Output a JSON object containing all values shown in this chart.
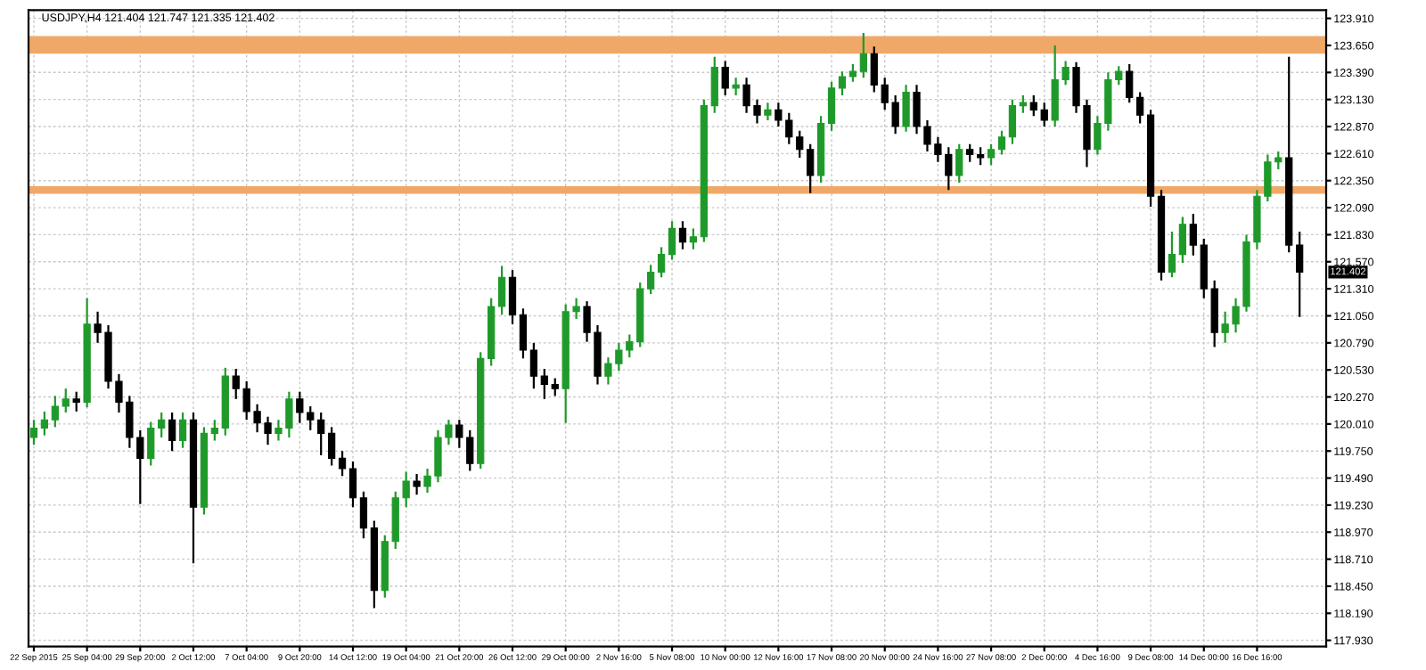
{
  "chart_data": {
    "type": "candlestick",
    "title": "USDJPY,H4 121.404 121.747 121.335 121.402",
    "categories": [
      "22 Sep 2015",
      null,
      null,
      null,
      null,
      "25 Sep 04:00",
      null,
      null,
      null,
      null,
      "29 Sep 20:00",
      null,
      null,
      null,
      null,
      "2 Oct 12:00",
      null,
      null,
      null,
      null,
      "7 Oct 04:00",
      null,
      null,
      null,
      null,
      "9 Oct 20:00",
      null,
      null,
      null,
      null,
      "14 Oct 12:00",
      null,
      null,
      null,
      null,
      "19 Oct 04:00",
      null,
      null,
      null,
      null,
      "21 Oct 20:00",
      null,
      null,
      null,
      null,
      "26 Oct 12:00",
      null,
      null,
      null,
      null,
      "29 Oct 00:00",
      null,
      null,
      null,
      null,
      "2 Nov 16:00",
      null,
      null,
      null,
      null,
      "5 Nov 08:00",
      null,
      null,
      null,
      null,
      "10 Nov 00:00",
      null,
      null,
      null,
      null,
      "12 Nov 16:00",
      null,
      null,
      null,
      null,
      "17 Nov 08:00",
      null,
      null,
      null,
      null,
      "20 Nov 00:00",
      null,
      null,
      null,
      null,
      "24 Nov 16:00",
      null,
      null,
      null,
      null,
      "27 Nov 08:00",
      null,
      null,
      null,
      null,
      "2 Dec 00:00",
      null,
      null,
      null,
      null,
      "4 Dec 16:00",
      null,
      null,
      null,
      null,
      "9 Dec 08:00",
      null,
      null,
      null,
      null,
      "14 Dec 00:00",
      null,
      null,
      null,
      null,
      "16 Dec 16:00",
      null,
      null,
      null,
      null
    ],
    "ohlc": [
      [
        119.88,
        120.05,
        119.81,
        119.97
      ],
      [
        119.97,
        120.13,
        119.9,
        120.05
      ],
      [
        120.05,
        120.28,
        119.98,
        120.18
      ],
      [
        120.18,
        120.35,
        120.12,
        120.25
      ],
      [
        120.25,
        120.32,
        120.13,
        120.22
      ],
      [
        120.22,
        121.22,
        120.17,
        120.97
      ],
      [
        120.97,
        121.09,
        120.79,
        120.89
      ],
      [
        120.89,
        120.96,
        120.35,
        120.42
      ],
      [
        120.42,
        120.49,
        120.12,
        120.22
      ],
      [
        120.22,
        120.28,
        119.78,
        119.88
      ],
      [
        119.88,
        119.95,
        119.24,
        119.68
      ],
      [
        119.68,
        120.03,
        119.61,
        119.97
      ],
      [
        119.97,
        120.12,
        119.88,
        120.05
      ],
      [
        120.05,
        120.12,
        119.75,
        119.85
      ],
      [
        119.85,
        120.12,
        119.78,
        120.05
      ],
      [
        120.05,
        120.12,
        118.67,
        119.21
      ],
      [
        119.21,
        119.98,
        119.14,
        119.92
      ],
      [
        119.92,
        120.05,
        119.85,
        119.97
      ],
      [
        119.97,
        120.55,
        119.9,
        120.47
      ],
      [
        120.47,
        120.54,
        120.25,
        120.35
      ],
      [
        120.35,
        120.42,
        120.05,
        120.13
      ],
      [
        120.13,
        120.2,
        119.93,
        120.02
      ],
      [
        120.02,
        120.08,
        119.81,
        119.92
      ],
      [
        119.92,
        120.05,
        119.85,
        119.97
      ],
      [
        119.97,
        120.32,
        119.88,
        120.25
      ],
      [
        120.25,
        120.32,
        120.02,
        120.12
      ],
      [
        120.12,
        120.18,
        119.95,
        120.05
      ],
      [
        120.05,
        120.12,
        119.71,
        119.92
      ],
      [
        119.92,
        119.98,
        119.61,
        119.68
      ],
      [
        119.68,
        119.75,
        119.51,
        119.58
      ],
      [
        119.58,
        119.65,
        119.21,
        119.3
      ],
      [
        119.3,
        119.36,
        118.91,
        119.01
      ],
      [
        119.01,
        119.08,
        118.24,
        118.41
      ],
      [
        118.41,
        118.94,
        118.34,
        118.88
      ],
      [
        118.88,
        119.36,
        118.81,
        119.3
      ],
      [
        119.3,
        119.55,
        119.21,
        119.46
      ],
      [
        119.46,
        119.53,
        119.33,
        119.41
      ],
      [
        119.41,
        119.58,
        119.35,
        119.51
      ],
      [
        119.51,
        119.95,
        119.45,
        119.88
      ],
      [
        119.88,
        120.05,
        119.81,
        120.0
      ],
      [
        120.0,
        120.05,
        119.78,
        119.88
      ],
      [
        119.88,
        119.95,
        119.56,
        119.63
      ],
      [
        119.63,
        120.7,
        119.58,
        120.64
      ],
      [
        120.64,
        121.22,
        120.57,
        121.14
      ],
      [
        121.14,
        121.53,
        121.06,
        121.42
      ],
      [
        121.42,
        121.49,
        120.97,
        121.06
      ],
      [
        121.06,
        121.12,
        120.64,
        120.72
      ],
      [
        120.72,
        120.79,
        120.35,
        120.47
      ],
      [
        120.47,
        120.54,
        120.25,
        120.39
      ],
      [
        120.39,
        120.45,
        120.28,
        120.35
      ],
      [
        120.35,
        121.16,
        120.02,
        121.09
      ],
      [
        121.09,
        121.22,
        121.02,
        121.14
      ],
      [
        121.14,
        121.19,
        120.8,
        120.89
      ],
      [
        120.89,
        120.96,
        120.39,
        120.47
      ],
      [
        120.47,
        120.65,
        120.39,
        120.59
      ],
      [
        120.59,
        120.79,
        120.52,
        120.72
      ],
      [
        120.72,
        120.87,
        120.65,
        120.8
      ],
      [
        120.8,
        121.37,
        120.75,
        121.31
      ],
      [
        121.31,
        121.54,
        121.26,
        121.47
      ],
      [
        121.47,
        121.71,
        121.42,
        121.64
      ],
      [
        121.64,
        121.96,
        121.59,
        121.89
      ],
      [
        121.89,
        121.96,
        121.69,
        121.76
      ],
      [
        121.76,
        121.89,
        121.69,
        121.81
      ],
      [
        121.81,
        123.13,
        121.76,
        123.07
      ],
      [
        123.07,
        123.54,
        123.0,
        123.44
      ],
      [
        123.44,
        123.5,
        123.17,
        123.24
      ],
      [
        123.24,
        123.34,
        123.17,
        123.27
      ],
      [
        123.27,
        123.34,
        123.0,
        123.07
      ],
      [
        123.07,
        123.13,
        122.9,
        122.98
      ],
      [
        122.98,
        123.1,
        122.93,
        123.03
      ],
      [
        123.03,
        123.1,
        122.87,
        122.93
      ],
      [
        122.93,
        123.0,
        122.7,
        122.77
      ],
      [
        122.77,
        122.83,
        122.57,
        122.65
      ],
      [
        122.65,
        122.7,
        122.23,
        122.4
      ],
      [
        122.4,
        122.97,
        122.33,
        122.9
      ],
      [
        122.9,
        123.3,
        122.83,
        123.24
      ],
      [
        123.24,
        123.4,
        123.17,
        123.35
      ],
      [
        123.35,
        123.47,
        123.3,
        123.4
      ],
      [
        123.4,
        123.77,
        123.34,
        123.57
      ],
      [
        123.57,
        123.64,
        123.2,
        123.27
      ],
      [
        123.27,
        123.34,
        123.03,
        123.1
      ],
      [
        123.1,
        123.17,
        122.8,
        122.87
      ],
      [
        122.87,
        123.27,
        122.82,
        123.2
      ],
      [
        123.2,
        123.27,
        122.8,
        122.87
      ],
      [
        122.87,
        122.93,
        122.63,
        122.7
      ],
      [
        122.7,
        122.77,
        122.53,
        122.6
      ],
      [
        122.6,
        122.67,
        122.26,
        122.4
      ],
      [
        122.4,
        122.7,
        122.33,
        122.65
      ],
      [
        122.65,
        122.7,
        122.53,
        122.6
      ],
      [
        122.6,
        122.67,
        122.5,
        122.57
      ],
      [
        122.57,
        122.7,
        122.5,
        122.65
      ],
      [
        122.65,
        122.83,
        122.6,
        122.77
      ],
      [
        122.77,
        123.13,
        122.7,
        123.07
      ],
      [
        123.07,
        123.17,
        123.0,
        123.1
      ],
      [
        123.1,
        123.17,
        122.97,
        123.03
      ],
      [
        123.03,
        123.1,
        122.87,
        122.93
      ],
      [
        122.93,
        123.65,
        122.87,
        123.32
      ],
      [
        123.32,
        123.5,
        123.27,
        123.44
      ],
      [
        123.44,
        123.49,
        123.0,
        123.07
      ],
      [
        123.07,
        123.13,
        122.48,
        122.65
      ],
      [
        122.65,
        122.97,
        122.6,
        122.9
      ],
      [
        122.9,
        123.39,
        122.83,
        123.32
      ],
      [
        123.32,
        123.45,
        123.27,
        123.4
      ],
      [
        123.4,
        123.47,
        123.1,
        123.15
      ],
      [
        123.15,
        123.2,
        122.9,
        122.98
      ],
      [
        122.98,
        123.03,
        122.1,
        122.2
      ],
      [
        122.2,
        122.26,
        121.39,
        121.47
      ],
      [
        121.47,
        121.86,
        121.42,
        121.64
      ],
      [
        121.64,
        122.0,
        121.56,
        121.93
      ],
      [
        121.93,
        122.03,
        121.63,
        121.73
      ],
      [
        121.73,
        121.79,
        121.22,
        121.31
      ],
      [
        121.31,
        121.39,
        120.75,
        120.89
      ],
      [
        120.89,
        121.09,
        120.79,
        120.97
      ],
      [
        120.97,
        121.22,
        120.89,
        121.14
      ],
      [
        121.14,
        121.83,
        121.09,
        121.76
      ],
      [
        121.76,
        122.26,
        121.69,
        122.2
      ],
      [
        122.2,
        122.6,
        122.15,
        122.53
      ],
      [
        122.53,
        122.63,
        122.46,
        122.57
      ],
      [
        122.57,
        123.54,
        121.66,
        121.73
      ],
      [
        121.73,
        121.86,
        121.04,
        121.47
      ]
    ],
    "ylim": [
      117.87,
      123.99
    ],
    "yticks": [
      {
        "value": 117.93,
        "label": "117.930"
      },
      {
        "value": 118.19,
        "label": "118.190"
      },
      {
        "value": 118.45,
        "label": "118.450"
      },
      {
        "value": 118.71,
        "label": "118.710"
      },
      {
        "value": 118.97,
        "label": "118.970"
      },
      {
        "value": 119.23,
        "label": "119.230"
      },
      {
        "value": 119.49,
        "label": "119.490"
      },
      {
        "value": 119.75,
        "label": "119.750"
      },
      {
        "value": 120.01,
        "label": "120.010"
      },
      {
        "value": 120.27,
        "label": "120.270"
      },
      {
        "value": 120.53,
        "label": "120.530"
      },
      {
        "value": 120.79,
        "label": "120.790"
      },
      {
        "value": 121.05,
        "label": "121.050"
      },
      {
        "value": 121.31,
        "label": "121.310"
      },
      {
        "value": 121.57,
        "label": "121.570"
      },
      {
        "value": 121.83,
        "label": "121.830"
      },
      {
        "value": 122.09,
        "label": "122.090"
      },
      {
        "value": 122.35,
        "label": "122.350"
      },
      {
        "value": 122.61,
        "label": "122.610"
      },
      {
        "value": 122.87,
        "label": "122.870"
      },
      {
        "value": 123.13,
        "label": "123.130"
      },
      {
        "value": 123.39,
        "label": "123.390"
      },
      {
        "value": 123.65,
        "label": "123.650"
      },
      {
        "value": 123.91,
        "label": "123.910"
      }
    ],
    "bands": [
      {
        "axis": "y",
        "from": 123.57,
        "to": 123.74,
        "color": "#f0a868"
      }
    ],
    "ref_lines": [
      {
        "axis": "y",
        "value": 122.26,
        "color": "#f0a868",
        "line_style": "solid"
      }
    ],
    "annotations": [
      "121.402"
    ],
    "grid": true
  }
}
